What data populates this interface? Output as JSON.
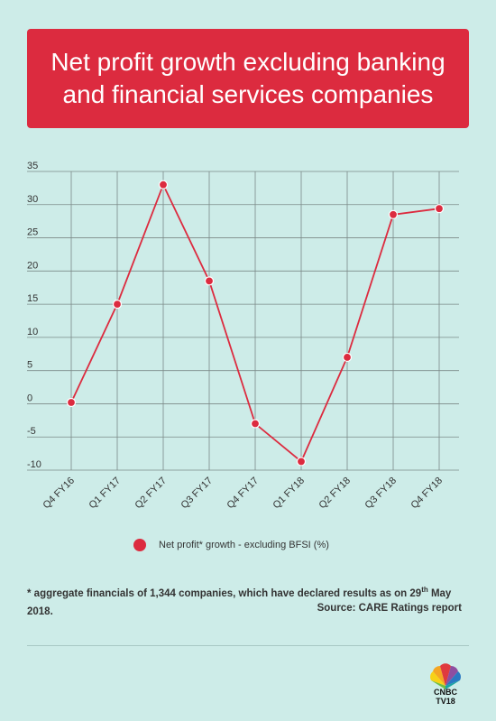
{
  "title_lines": [
    "Net profit growth excluding banking",
    "and financial services companies"
  ],
  "chart_data": {
    "type": "line",
    "categories": [
      "Q4 FY16",
      "Q1 FY17",
      "Q2 FY17",
      "Q3 FY17",
      "Q4 FY17",
      "Q1 FY18",
      "Q2 FY18",
      "Q3 FY18",
      "Q4 FY18"
    ],
    "series": [
      {
        "name": "Net profit* growth - excluding BFSI (%)",
        "values": [
          0.2,
          15,
          33,
          18.5,
          -3,
          -8.7,
          7,
          28.5,
          29.4
        ],
        "color": "#dc2b3f"
      }
    ],
    "ylim": [
      -10,
      35
    ],
    "yticks": [
      35,
      30,
      25,
      20,
      15,
      10,
      5,
      0,
      -5,
      -10
    ],
    "grid": true,
    "legend": "bottom"
  },
  "legend_label": "Net profit* growth - excluding BFSI (%)",
  "footnote": {
    "text_before": "* aggregate  financials of 1,344 companies, which have declared results as on 29",
    "sup": "th",
    "text_after": " May 2018."
  },
  "source": "Source: CARE Ratings report",
  "logo": {
    "line1": "CNBC",
    "line2": "TV18"
  },
  "colors": {
    "accent": "#dc2b3f",
    "background": "#cdece8",
    "grid": "#7b8a87"
  }
}
